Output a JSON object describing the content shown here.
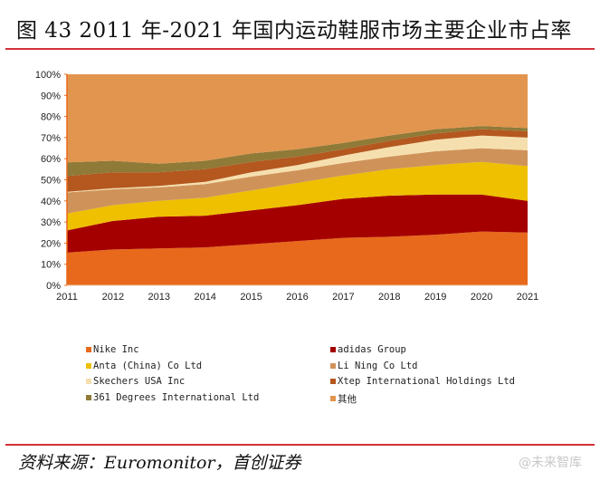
{
  "title": "图 43 2011 年-2021 年国内运动鞋服市场主要企业市占率",
  "source": "资料来源：Euromonitor，首创证券",
  "watermark": "@未来智库",
  "chart_data": {
    "type": "area",
    "stacked": true,
    "title": "图 43 2011 年-2021 年国内运动鞋服市场主要企业市占率",
    "xlabel": "",
    "ylabel": "",
    "x": [
      "2011",
      "2012",
      "2013",
      "2014",
      "2015",
      "2016",
      "2017",
      "2018",
      "2019",
      "2020",
      "2021"
    ],
    "ylim": [
      0,
      100
    ],
    "yticks": [
      "0%",
      "10%",
      "20%",
      "30%",
      "40%",
      "50%",
      "60%",
      "70%",
      "80%",
      "90%",
      "100%"
    ],
    "grid": false,
    "legend_position": "bottom",
    "series": [
      {
        "name": "Nike Inc",
        "color": "#e8691b",
        "values": [
          15.5,
          17.0,
          17.5,
          18.0,
          19.5,
          21.0,
          22.5,
          23.0,
          24.0,
          25.5,
          25.0
        ]
      },
      {
        "name": "adidas Group",
        "color": "#a50000",
        "values": [
          10.5,
          13.5,
          15.0,
          15.0,
          16.0,
          17.0,
          18.5,
          19.5,
          19.0,
          17.5,
          15.0
        ]
      },
      {
        "name": "Anta (China) Co Ltd",
        "color": "#eec000",
        "values": [
          8.0,
          7.5,
          7.5,
          8.5,
          9.5,
          10.5,
          11.0,
          12.5,
          14.0,
          15.5,
          16.5
        ]
      },
      {
        "name": "Li Ning Co Ltd",
        "color": "#cf935a",
        "values": [
          10.0,
          7.5,
          6.5,
          6.5,
          6.5,
          6.0,
          6.0,
          6.0,
          6.5,
          6.5,
          7.5
        ]
      },
      {
        "name": "Skechers USA Inc",
        "color": "#f6dfae",
        "values": [
          0.3,
          0.5,
          0.6,
          1.0,
          2.0,
          2.5,
          3.5,
          4.5,
          5.5,
          6.0,
          6.0
        ]
      },
      {
        "name": "Xtep International Holdings Ltd",
        "color": "#b4581f",
        "values": [
          7.5,
          7.5,
          6.5,
          6.0,
          5.0,
          4.0,
          3.0,
          3.0,
          3.0,
          3.0,
          3.0
        ]
      },
      {
        "name": "361 Degrees International Ltd",
        "color": "#8f7a38",
        "values": [
          6.5,
          5.5,
          4.0,
          4.0,
          4.0,
          3.5,
          3.0,
          2.5,
          2.0,
          1.5,
          1.5
        ]
      },
      {
        "name": "其他",
        "color": "#e2954e",
        "values": [
          41.7,
          41.0,
          42.4,
          41.0,
          37.5,
          35.5,
          32.5,
          29.0,
          26.0,
          24.5,
          25.5
        ]
      }
    ]
  }
}
